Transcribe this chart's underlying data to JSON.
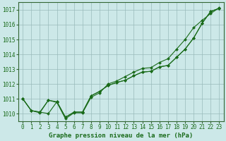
{
  "x": [
    0,
    1,
    2,
    3,
    4,
    5,
    6,
    7,
    8,
    9,
    10,
    11,
    12,
    13,
    14,
    15,
    16,
    17,
    18,
    19,
    20,
    21,
    22,
    23
  ],
  "series1": [
    1011.0,
    1010.2,
    1010.1,
    1010.0,
    1010.8,
    1009.75,
    1010.1,
    1010.1,
    1011.2,
    1011.5,
    1011.9,
    1012.1,
    1012.25,
    1012.55,
    1012.8,
    1012.85,
    1013.15,
    1013.25,
    1013.8,
    1014.35,
    1015.1,
    1016.1,
    1016.9,
    1017.1
  ],
  "series2": [
    1011.0,
    1010.2,
    1010.1,
    1010.9,
    1010.8,
    1009.75,
    1010.1,
    1010.1,
    1011.2,
    1011.5,
    1011.9,
    1012.1,
    1012.25,
    1012.55,
    1012.8,
    1012.85,
    1013.15,
    1013.25,
    1013.8,
    1014.35,
    1015.1,
    1016.1,
    1016.9,
    1017.1
  ],
  "series3": [
    1011.0,
    1010.2,
    1010.05,
    1010.9,
    1010.75,
    1009.65,
    1010.05,
    1010.05,
    1011.1,
    1011.4,
    1012.0,
    1012.2,
    1012.5,
    1012.8,
    1013.05,
    1013.1,
    1013.45,
    1013.7,
    1014.35,
    1015.0,
    1015.8,
    1016.3,
    1016.75,
    1017.15
  ],
  "line_color": "#1a6b1a",
  "marker_color": "#1a6b1a",
  "bg_color": "#cce8e8",
  "grid_color": "#99bbbb",
  "axis_line_color": "#336633",
  "ylabel_ticks": [
    1010,
    1011,
    1012,
    1013,
    1014,
    1015,
    1016,
    1017
  ],
  "xlabel_ticks": [
    0,
    1,
    2,
    3,
    4,
    5,
    6,
    7,
    8,
    9,
    10,
    11,
    12,
    13,
    14,
    15,
    16,
    17,
    18,
    19,
    20,
    21,
    22,
    23
  ],
  "ylim": [
    1009.5,
    1017.5
  ],
  "xlim": [
    -0.5,
    23.5
  ],
  "xlabel": "Graphe pression niveau de la mer (hPa)",
  "tick_fontsize": 5.5,
  "xlabel_fontsize": 6.5
}
